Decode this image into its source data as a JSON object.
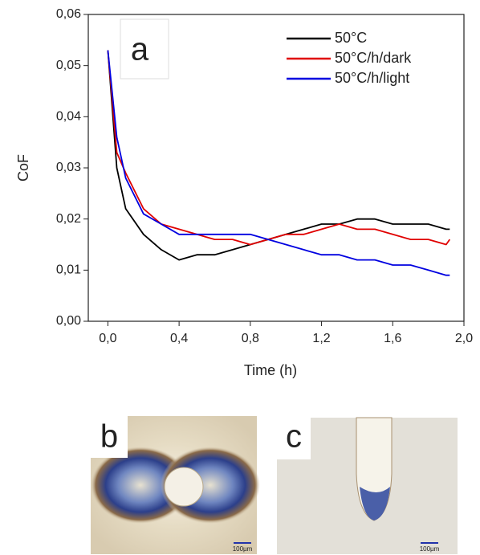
{
  "chart_data": {
    "type": "line",
    "annotation": "a",
    "xlabel": "Time (h)",
    "ylabel": "CoF",
    "x": [
      0,
      0.05,
      0.1,
      0.2,
      0.3,
      0.4,
      0.5,
      0.6,
      0.7,
      0.8,
      0.9,
      1.0,
      1.1,
      1.2,
      1.3,
      1.4,
      1.5,
      1.6,
      1.7,
      1.8,
      1.9,
      1.92
    ],
    "series": [
      {
        "name": "50°C",
        "color": "#000000",
        "values": [
          0.053,
          0.03,
          0.022,
          0.017,
          0.014,
          0.012,
          0.013,
          0.013,
          0.014,
          0.015,
          0.016,
          0.017,
          0.018,
          0.019,
          0.019,
          0.02,
          0.02,
          0.019,
          0.019,
          0.019,
          0.018,
          0.018
        ]
      },
      {
        "name": "50°C/h/dark",
        "color": "#e00000",
        "values": [
          0.053,
          0.033,
          0.029,
          0.022,
          0.019,
          0.018,
          0.017,
          0.016,
          0.016,
          0.015,
          0.016,
          0.017,
          0.017,
          0.018,
          0.019,
          0.018,
          0.018,
          0.017,
          0.016,
          0.016,
          0.015,
          0.016
        ]
      },
      {
        "name": "50°C/h/light",
        "color": "#0000e0",
        "values": [
          0.053,
          0.036,
          0.028,
          0.021,
          0.019,
          0.017,
          0.017,
          0.017,
          0.017,
          0.017,
          0.016,
          0.015,
          0.014,
          0.013,
          0.013,
          0.012,
          0.012,
          0.011,
          0.011,
          0.01,
          0.009,
          0.009
        ]
      }
    ],
    "xlim": [
      -0.11,
      2.0
    ],
    "ylim": [
      0,
      0.06
    ],
    "xticks": [
      {
        "value": 0,
        "label": "0,0"
      },
      {
        "value": 0.4,
        "label": "0,4"
      },
      {
        "value": 0.8,
        "label": "0,8"
      },
      {
        "value": 1.2,
        "label": "1,2"
      },
      {
        "value": 1.6,
        "label": "1,6"
      },
      {
        "value": 2.0,
        "label": "2,0"
      }
    ],
    "yticks": [
      {
        "value": 0,
        "label": "0,00"
      },
      {
        "value": 0.01,
        "label": "0,01"
      },
      {
        "value": 0.02,
        "label": "0,02"
      },
      {
        "value": 0.03,
        "label": "0,03"
      },
      {
        "value": 0.04,
        "label": "0,04"
      },
      {
        "value": 0.05,
        "label": "0,05"
      },
      {
        "value": 0.06,
        "label": "0,06"
      }
    ],
    "legend": "upper right"
  },
  "panels": [
    {
      "label": "b",
      "scale_label": "100µm"
    },
    {
      "label": "c",
      "scale_label": "100µm"
    }
  ]
}
